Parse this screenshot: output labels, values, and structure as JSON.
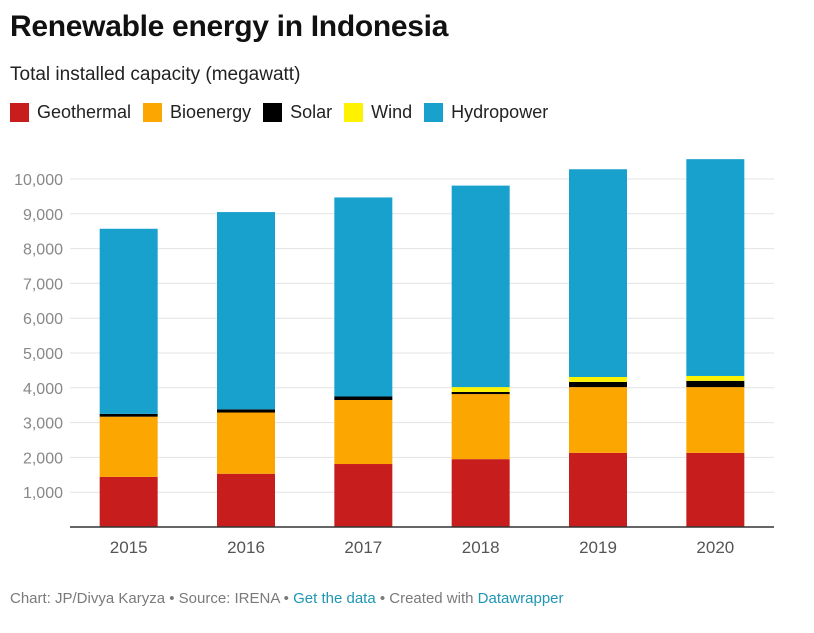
{
  "title": "Renewable energy in Indonesia",
  "subtitle": "Total installed capacity (megawatt)",
  "footer": {
    "credit": "Chart: JP/Divya Karyza • Source: IRENA • ",
    "get_data": "Get the data",
    "created_with": " • Created with ",
    "tool": "Datawrapper"
  },
  "colors": {
    "Geothermal": "#c71e1d",
    "Bioenergy": "#fca601",
    "Solar": "#000000",
    "Wind": "#fff200",
    "Hydropower": "#18a1cd"
  },
  "chart_data": {
    "type": "bar",
    "stacked": true,
    "categories": [
      "2015",
      "2016",
      "2017",
      "2018",
      "2019",
      "2020"
    ],
    "series": [
      {
        "name": "Geothermal",
        "values": [
          1440,
          1530,
          1810,
          1950,
          2130,
          2130
        ]
      },
      {
        "name": "Bioenergy",
        "values": [
          1730,
          1760,
          1840,
          1870,
          1890,
          1890
        ]
      },
      {
        "name": "Solar",
        "values": [
          80,
          90,
          100,
          60,
          150,
          180
        ]
      },
      {
        "name": "Wind",
        "values": [
          0,
          0,
          0,
          140,
          140,
          140
        ]
      },
      {
        "name": "Hydropower",
        "values": [
          5320,
          5670,
          5720,
          5790,
          5970,
          6230
        ]
      }
    ],
    "ylim": [
      0,
      10500
    ],
    "yticks": [
      1000,
      2000,
      3000,
      4000,
      5000,
      6000,
      7000,
      8000,
      9000,
      10000
    ],
    "ytick_labels": [
      "1,000",
      "2,000",
      "3,000",
      "4,000",
      "5,000",
      "6,000",
      "7,000",
      "8,000",
      "9,000",
      "10,000"
    ],
    "grid": true,
    "legend": "top-left",
    "xlabel": "",
    "ylabel": ""
  }
}
